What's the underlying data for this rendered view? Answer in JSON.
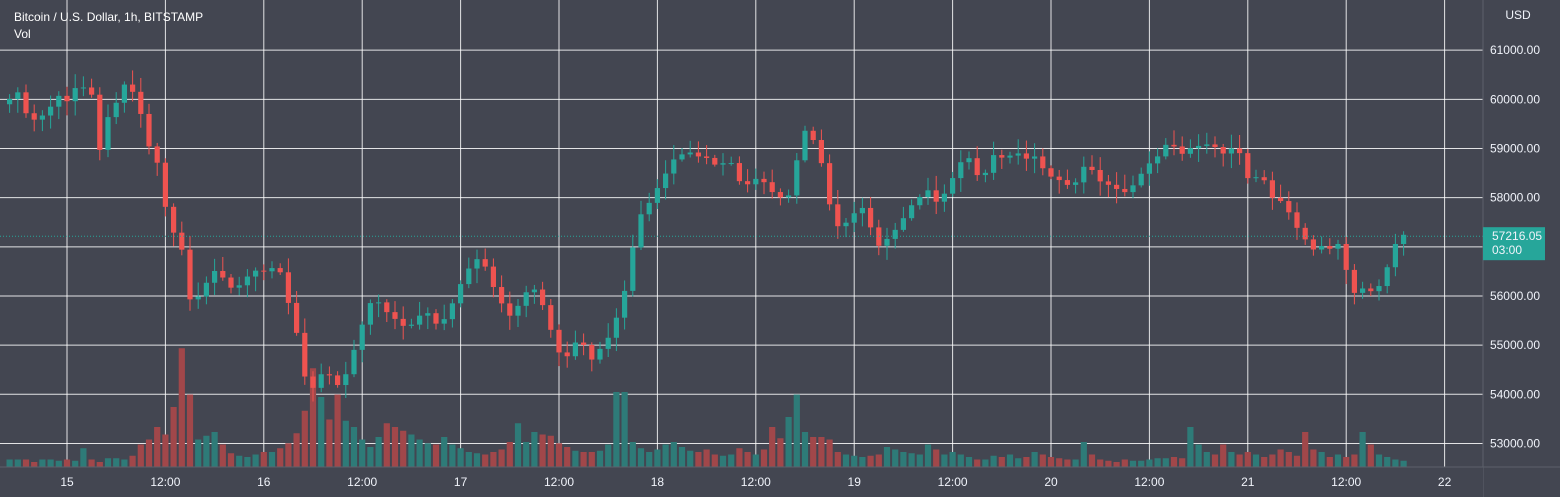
{
  "legend": {
    "symbol": "Bitcoin / U.S. Dollar, 1h, BITSTAMP",
    "volume_label": "Vol"
  },
  "colors": {
    "background": "#434651",
    "grid": "#ffffff",
    "up": "#26a69a",
    "down": "#ef5350",
    "volume_up": "#2e7b78",
    "volume_down": "#a1474a",
    "axis_text": "#f0f3fa"
  },
  "chart_data": {
    "type": "candlestick",
    "title": "Bitcoin / U.S. Dollar, 1h, BITSTAMP",
    "currency_label": "USD",
    "y_ticks": [
      61000,
      60000,
      59000,
      58000,
      57000,
      56000,
      55000,
      54000,
      53000
    ],
    "y_tick_labels": [
      "61000.00",
      "60000.00",
      "59000.00",
      "58000.00",
      "57000.00",
      "56000.00",
      "55000.00",
      "54000.00",
      "53000.00"
    ],
    "ylim": [
      52460,
      61980
    ],
    "x_ticks": [
      "15",
      "12:00",
      "16",
      "12:00",
      "17",
      "12:00",
      "18",
      "12:00",
      "19",
      "12:00",
      "20",
      "12:00",
      "21",
      "12:00",
      "22"
    ],
    "x_tick_hours": [
      0,
      12,
      24,
      36,
      48,
      60,
      72,
      84,
      96,
      108,
      120,
      132,
      144,
      156,
      168
    ],
    "grid": true,
    "last_price": 57216.05,
    "last_price_label": "57216.05",
    "countdown": "03:00",
    "close_path": [
      [
        -7.5,
        59900
      ],
      [
        -6,
        60100
      ],
      [
        -4.5,
        59500
      ],
      [
        -2.5,
        59700
      ],
      [
        -1,
        60100
      ],
      [
        0,
        60000
      ],
      [
        1.5,
        60300
      ],
      [
        3,
        60100
      ],
      [
        4,
        59000
      ],
      [
        5,
        59600
      ],
      [
        6,
        59900
      ],
      [
        7,
        60300
      ],
      [
        8,
        60150
      ],
      [
        9,
        59700
      ],
      [
        10,
        59100
      ],
      [
        11,
        58700
      ],
      [
        12,
        57800
      ],
      [
        13,
        57300
      ],
      [
        14,
        56900
      ],
      [
        14.5,
        56100
      ],
      [
        15.5,
        55800
      ],
      [
        16.5,
        56200
      ],
      [
        17.5,
        56400
      ],
      [
        18.5,
        56500
      ],
      [
        19.5,
        56200
      ],
      [
        20.5,
        56050
      ],
      [
        21.5,
        56300
      ],
      [
        22.5,
        56600
      ],
      [
        23.5,
        56400
      ],
      [
        24.5,
        56500
      ],
      [
        25.5,
        56700
      ],
      [
        26.5,
        56200
      ],
      [
        27.5,
        55600
      ],
      [
        28.5,
        54800
      ],
      [
        29.5,
        54000
      ],
      [
        30.5,
        54300
      ],
      [
        31.5,
        54500
      ],
      [
        32.5,
        54300
      ],
      [
        33.5,
        54100
      ],
      [
        34.5,
        54700
      ],
      [
        35.5,
        55200
      ],
      [
        36.5,
        55600
      ],
      [
        37.5,
        56000
      ],
      [
        38.5,
        55800
      ],
      [
        39.5,
        55600
      ],
      [
        40.5,
        55400
      ],
      [
        41.5,
        55300
      ],
      [
        42.5,
        55500
      ],
      [
        43.5,
        55800
      ],
      [
        44.5,
        55500
      ],
      [
        45.5,
        55300
      ],
      [
        46.5,
        55700
      ],
      [
        47.5,
        56100
      ],
      [
        48.5,
        56400
      ],
      [
        49.5,
        56600
      ],
      [
        50.5,
        56800
      ],
      [
        51.5,
        56400
      ],
      [
        52.5,
        56000
      ],
      [
        53.5,
        55700
      ],
      [
        54.5,
        55600
      ],
      [
        55.5,
        55900
      ],
      [
        56.5,
        56300
      ],
      [
        57.5,
        56000
      ],
      [
        58.5,
        55600
      ],
      [
        59.5,
        55000
      ],
      [
        60.5,
        54700
      ],
      [
        61.5,
        54900
      ],
      [
        62.5,
        55100
      ],
      [
        63.5,
        54800
      ],
      [
        64.5,
        54700
      ],
      [
        65.5,
        55100
      ],
      [
        66.5,
        55300
      ],
      [
        67.5,
        55700
      ],
      [
        68.5,
        56500
      ],
      [
        69.5,
        57500
      ],
      [
        70.5,
        57800
      ],
      [
        71.5,
        58000
      ],
      [
        72.5,
        58400
      ],
      [
        73.5,
        58700
      ],
      [
        74.5,
        58800
      ],
      [
        75.5,
        59000
      ],
      [
        76.5,
        58900
      ],
      [
        77.5,
        58700
      ],
      [
        78.5,
        58800
      ],
      [
        79.5,
        58600
      ],
      [
        80.5,
        58900
      ],
      [
        81.5,
        58500
      ],
      [
        82.5,
        58200
      ],
      [
        83.5,
        58300
      ],
      [
        84.5,
        58400
      ],
      [
        85.5,
        58200
      ],
      [
        86.5,
        58000
      ],
      [
        87.5,
        58100
      ],
      [
        88.5,
        58000
      ],
      [
        89.5,
        59500
      ],
      [
        90.5,
        59300
      ],
      [
        91.5,
        59100
      ],
      [
        92.5,
        58200
      ],
      [
        93.5,
        57500
      ],
      [
        94.5,
        57300
      ],
      [
        95.5,
        57600
      ],
      [
        96.5,
        57800
      ],
      [
        97.5,
        57700
      ],
      [
        98.5,
        57100
      ],
      [
        99.5,
        57000
      ],
      [
        100.5,
        57300
      ],
      [
        101.5,
        57500
      ],
      [
        102.5,
        57700
      ],
      [
        103.5,
        57900
      ],
      [
        104.5,
        58200
      ],
      [
        105.5,
        58000
      ],
      [
        106.5,
        57800
      ],
      [
        107.5,
        58300
      ],
      [
        108.5,
        58600
      ],
      [
        109.5,
        58800
      ],
      [
        110.5,
        58700
      ],
      [
        111.5,
        58200
      ],
      [
        112.5,
        58800
      ],
      [
        113.5,
        58900
      ],
      [
        114.5,
        58700
      ],
      [
        115.5,
        58900
      ],
      [
        116.5,
        58800
      ],
      [
        117.5,
        58900
      ],
      [
        118.5,
        58700
      ],
      [
        119.5,
        58400
      ],
      [
        120.5,
        58500
      ],
      [
        121.5,
        58300
      ],
      [
        122.5,
        58100
      ],
      [
        123.5,
        58500
      ],
      [
        124.5,
        58700
      ],
      [
        125.5,
        58400
      ],
      [
        126.5,
        58200
      ],
      [
        127.5,
        58300
      ],
      [
        128.5,
        58100
      ],
      [
        129.5,
        58200
      ],
      [
        130.5,
        58400
      ],
      [
        131.5,
        58600
      ],
      [
        132.5,
        58700
      ],
      [
        133.5,
        59000
      ],
      [
        134.5,
        59200
      ],
      [
        135.5,
        59000
      ],
      [
        136.5,
        58900
      ],
      [
        137.5,
        59100
      ],
      [
        138.5,
        59000
      ],
      [
        139.5,
        59200
      ],
      [
        140.5,
        58900
      ],
      [
        141.5,
        59000
      ],
      [
        142.5,
        59100
      ],
      [
        143.5,
        58600
      ],
      [
        144.5,
        58300
      ],
      [
        145.5,
        58600
      ],
      [
        146.5,
        58100
      ],
      [
        147.5,
        57900
      ],
      [
        148.5,
        58000
      ],
      [
        149.5,
        57500
      ],
      [
        150.5,
        57300
      ],
      [
        151.5,
        56900
      ],
      [
        152.5,
        57000
      ],
      [
        153.5,
        57100
      ],
      [
        154.5,
        56900
      ],
      [
        155.5,
        57100
      ],
      [
        156.5,
        56000
      ],
      [
        157.5,
        56200
      ],
      [
        158.5,
        56100
      ],
      [
        159.5,
        56200
      ],
      [
        160.5,
        56200
      ],
      [
        161.5,
        57000
      ],
      [
        162.5,
        57200
      ],
      [
        163.2,
        57216
      ]
    ],
    "volume_scale_max": 100,
    "volume_peaks": [
      [
        -6,
        6
      ],
      [
        -4,
        4
      ],
      [
        -1,
        5
      ],
      [
        0,
        6
      ],
      [
        1,
        5
      ],
      [
        2,
        15
      ],
      [
        3,
        6
      ],
      [
        4,
        4
      ],
      [
        5,
        7
      ],
      [
        6,
        7
      ],
      [
        7,
        6
      ],
      [
        8,
        9
      ],
      [
        9,
        18
      ],
      [
        10,
        22
      ],
      [
        11,
        32
      ],
      [
        12,
        26
      ],
      [
        13,
        48
      ],
      [
        14,
        95
      ],
      [
        15,
        58
      ],
      [
        16,
        22
      ],
      [
        17,
        25
      ],
      [
        18,
        28
      ],
      [
        19,
        18
      ],
      [
        20,
        11
      ],
      [
        21,
        9
      ],
      [
        22,
        8
      ],
      [
        23,
        10
      ],
      [
        24,
        12
      ],
      [
        25,
        12
      ],
      [
        26,
        15
      ],
      [
        27,
        19
      ],
      [
        28,
        27
      ],
      [
        29,
        45
      ],
      [
        30,
        79
      ],
      [
        31,
        56
      ],
      [
        32,
        38
      ],
      [
        33,
        58
      ],
      [
        34,
        37
      ],
      [
        35,
        32
      ],
      [
        36,
        22
      ],
      [
        37,
        16
      ],
      [
        38,
        24
      ],
      [
        39,
        35
      ],
      [
        40,
        32
      ],
      [
        41,
        29
      ],
      [
        42,
        26
      ],
      [
        43,
        22
      ],
      [
        44,
        19
      ],
      [
        45,
        18
      ],
      [
        46,
        24
      ],
      [
        47,
        18
      ],
      [
        48,
        15
      ],
      [
        49,
        12
      ],
      [
        50,
        11
      ],
      [
        51,
        10
      ],
      [
        52,
        12
      ],
      [
        53,
        14
      ],
      [
        54,
        20
      ],
      [
        55,
        35
      ],
      [
        56,
        20
      ],
      [
        57,
        28
      ],
      [
        58,
        26
      ],
      [
        59,
        25
      ],
      [
        60,
        19
      ],
      [
        61,
        16
      ],
      [
        62,
        13
      ],
      [
        63,
        12
      ],
      [
        64,
        12
      ],
      [
        65,
        13
      ],
      [
        66,
        18
      ],
      [
        67,
        60
      ],
      [
        68,
        60
      ],
      [
        69,
        20
      ],
      [
        70,
        15
      ],
      [
        71,
        12
      ],
      [
        72,
        14
      ],
      [
        73,
        18
      ],
      [
        74,
        20
      ],
      [
        75,
        16
      ],
      [
        76,
        13
      ],
      [
        77,
        12
      ],
      [
        78,
        14
      ],
      [
        79,
        10
      ],
      [
        80,
        9
      ],
      [
        81,
        10
      ],
      [
        82,
        15
      ],
      [
        83,
        12
      ],
      [
        84,
        10
      ],
      [
        85,
        14
      ],
      [
        86,
        32
      ],
      [
        87,
        23
      ],
      [
        88,
        40
      ],
      [
        89,
        58
      ],
      [
        90,
        28
      ],
      [
        91,
        24
      ],
      [
        92,
        24
      ],
      [
        93,
        22
      ],
      [
        94,
        12
      ],
      [
        95,
        10
      ],
      [
        96,
        9
      ],
      [
        97,
        8
      ],
      [
        98,
        9
      ],
      [
        99,
        10
      ],
      [
        100,
        16
      ],
      [
        101,
        14
      ],
      [
        102,
        12
      ],
      [
        103,
        11
      ],
      [
        104,
        10
      ],
      [
        105,
        18
      ],
      [
        106,
        14
      ],
      [
        107,
        10
      ],
      [
        108,
        12
      ],
      [
        109,
        10
      ],
      [
        110,
        8
      ],
      [
        111,
        6
      ],
      [
        112,
        6
      ],
      [
        113,
        9
      ],
      [
        114,
        8
      ],
      [
        115,
        10
      ],
      [
        116,
        7
      ],
      [
        117,
        8
      ],
      [
        118,
        12
      ],
      [
        119,
        10
      ],
      [
        120,
        8
      ],
      [
        121,
        7
      ],
      [
        122,
        6
      ],
      [
        123,
        6
      ],
      [
        124,
        20
      ],
      [
        125,
        10
      ],
      [
        126,
        6
      ],
      [
        127,
        5
      ],
      [
        128,
        4
      ],
      [
        129,
        6
      ],
      [
        130,
        5
      ],
      [
        131,
        5
      ],
      [
        132,
        6
      ],
      [
        133,
        7
      ],
      [
        134,
        7
      ],
      [
        135,
        8
      ],
      [
        136,
        7
      ],
      [
        137,
        32
      ],
      [
        138,
        18
      ],
      [
        139,
        12
      ],
      [
        140,
        10
      ],
      [
        141,
        18
      ],
      [
        142,
        12
      ],
      [
        143,
        10
      ],
      [
        144,
        12
      ],
      [
        145,
        10
      ],
      [
        146,
        8
      ],
      [
        147,
        10
      ],
      [
        148,
        14
      ],
      [
        149,
        12
      ],
      [
        150,
        9
      ],
      [
        151,
        28
      ],
      [
        152,
        14
      ],
      [
        153,
        12
      ],
      [
        154,
        8
      ],
      [
        155,
        10
      ],
      [
        156,
        8
      ],
      [
        157,
        10
      ],
      [
        158,
        28
      ],
      [
        159,
        18
      ],
      [
        160,
        10
      ],
      [
        161,
        8
      ],
      [
        162,
        6
      ],
      [
        163,
        5
      ]
    ]
  }
}
